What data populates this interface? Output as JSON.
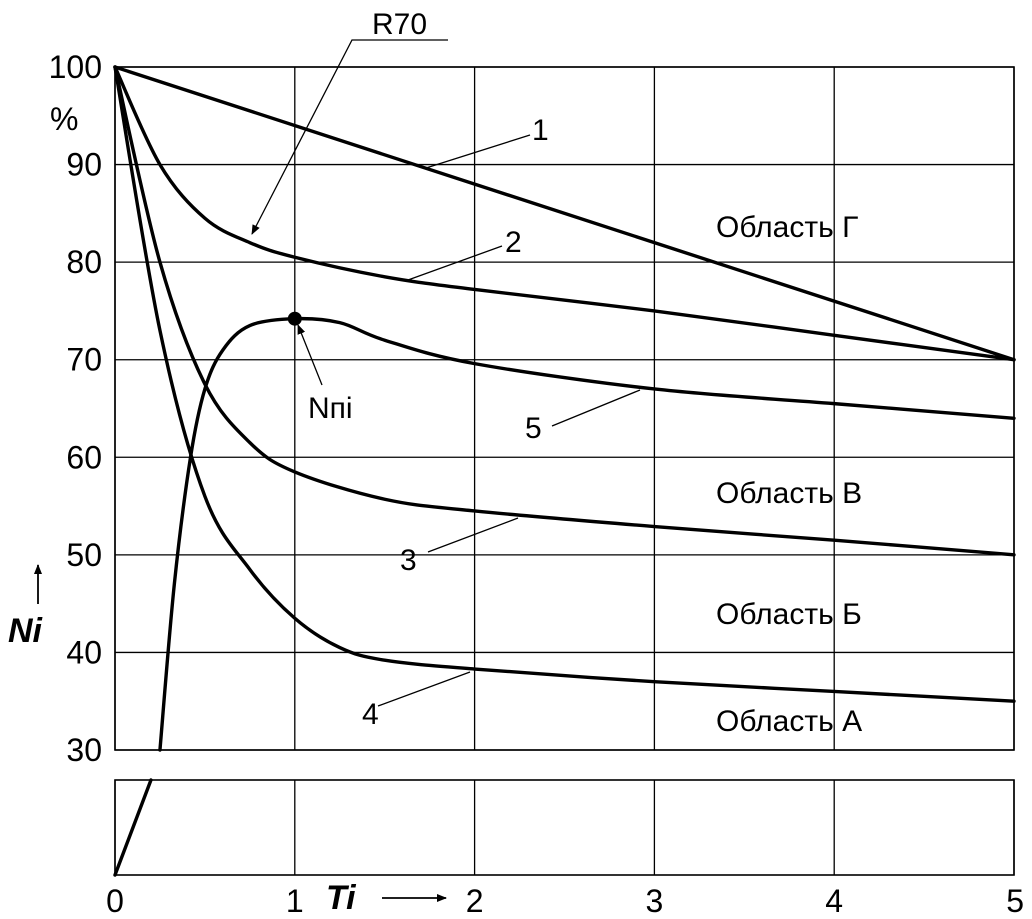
{
  "chart_data": {
    "type": "line",
    "xlabel": "Ti",
    "ylabel": "Ni",
    "y_unit": "%",
    "xlim": [
      0,
      5
    ],
    "ylim": [
      30,
      100
    ],
    "x_ticks": [
      "0",
      "1",
      "2",
      "3",
      "4",
      "5"
    ],
    "y_ticks": [
      "30",
      "40",
      "50",
      "60",
      "70",
      "80",
      "90",
      "100"
    ],
    "grid": true,
    "series": [
      {
        "name": "1",
        "x": [
          0,
          5
        ],
        "y": [
          100,
          70
        ]
      },
      {
        "name": "2",
        "x": [
          0,
          0.25,
          0.5,
          0.75,
          1,
          1.5,
          2,
          3,
          4,
          5
        ],
        "y": [
          100,
          90,
          84.5,
          82,
          80.5,
          78.5,
          77.2,
          75,
          72.5,
          70
        ]
      },
      {
        "name": "3",
        "x": [
          0,
          0.25,
          0.5,
          0.75,
          1,
          1.5,
          2,
          3,
          4,
          5
        ],
        "y": [
          100,
          80,
          67.5,
          61.5,
          58.5,
          55.7,
          54.5,
          52.9,
          51.5,
          50
        ]
      },
      {
        "name": "4",
        "x": [
          0,
          0.25,
          0.5,
          0.75,
          1,
          1.25,
          1.5,
          2,
          3,
          4,
          5
        ],
        "y": [
          100,
          73,
          56,
          48.5,
          43.5,
          40.5,
          39.2,
          38.3,
          37,
          36,
          35
        ]
      },
      {
        "name": "5",
        "x": [
          0.25,
          0.33,
          0.42,
          0.5,
          0.6,
          0.75,
          1,
          1.25,
          1.5,
          2,
          3,
          4,
          5
        ],
        "y": [
          30,
          47,
          60,
          67,
          71,
          73.5,
          74.2,
          73.8,
          72,
          69.6,
          67,
          65.5,
          64
        ]
      }
    ],
    "lower_panel_line": {
      "x": [
        0,
        0.2
      ],
      "y_fraction": [
        0,
        1
      ]
    },
    "marked_point": {
      "label": "Nпi",
      "x": 1,
      "y": 74.2
    },
    "annotations": {
      "r70": "R70",
      "region_g": "Область Г",
      "region_v": "Область В",
      "region_b": "Область Б",
      "region_a": "Область А"
    }
  }
}
